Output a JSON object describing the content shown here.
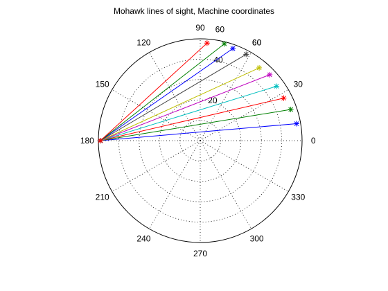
{
  "chart_data": {
    "type": "polar-line",
    "title": "Mohawk lines of sight, Machine coordinates",
    "angle_units": "degrees",
    "rmax": 50,
    "radial_ticks": [
      {
        "value": 20,
        "label": "20"
      },
      {
        "value": 40,
        "label": "40"
      }
    ],
    "angle_ticks": [
      {
        "value": 0,
        "label": "0"
      },
      {
        "value": 30,
        "label": "30"
      },
      {
        "value": 60,
        "label": "60"
      },
      {
        "value": 90,
        "label": "90"
      },
      {
        "value": 120,
        "label": "120"
      },
      {
        "value": 150,
        "label": "150"
      },
      {
        "value": 180,
        "label": "180"
      },
      {
        "value": 210,
        "label": "210"
      },
      {
        "value": 240,
        "label": "240"
      },
      {
        "value": 270,
        "label": "270"
      },
      {
        "value": 300,
        "label": "300"
      },
      {
        "value": 330,
        "label": "330"
      }
    ],
    "extra_labels": [
      {
        "angle": 80,
        "label": "60"
      },
      {
        "angle": 60,
        "label": "60"
      }
    ],
    "grid": true,
    "origin": {
      "angle": 180,
      "r": 49
    },
    "series": [
      {
        "end_angle": 10,
        "end_r": 48,
        "color": "#0000ff"
      },
      {
        "end_angle": 19,
        "end_r": 47,
        "color": "#008000"
      },
      {
        "end_angle": 27,
        "end_r": 46,
        "color": "#ff0000"
      },
      {
        "end_angle": 35.5,
        "end_r": 46,
        "color": "#00bfbf"
      },
      {
        "end_angle": 43.5,
        "end_r": 47,
        "color": "#bf00bf"
      },
      {
        "end_angle": 51,
        "end_r": 46,
        "color": "#bfbf00"
      },
      {
        "end_angle": 62,
        "end_r": 48,
        "color": "#404040"
      },
      {
        "end_angle": 70.5,
        "end_r": 48,
        "color": "#0000ff"
      },
      {
        "end_angle": 76,
        "end_r": 49,
        "color": "#008000"
      },
      {
        "end_angle": 86,
        "end_r": 48,
        "color": "#ff0000"
      }
    ]
  }
}
